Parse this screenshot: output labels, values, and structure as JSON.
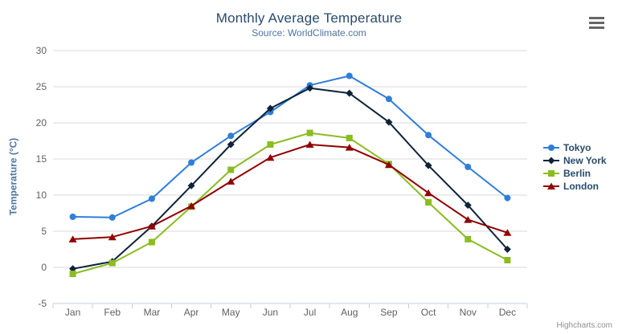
{
  "header": {
    "title": "Monthly Average Temperature",
    "subtitle": "Source: WorldClimate.com"
  },
  "credits_label": "Highcharts.com",
  "colors": {
    "title": "#274b6d",
    "subtitle": "#4d759e",
    "axis_labels": "#606060",
    "axis_line": "#c0d0e0",
    "gridline": "#d8d8d8",
    "menu_icon": "#666666",
    "credits": "#909090"
  },
  "chart_data": {
    "type": "line",
    "title": "Monthly Average Temperature",
    "subtitle": "Source: WorldClimate.com",
    "xlabel": "",
    "ylabel": "Temperature (°C)",
    "ylim": [
      -5,
      30
    ],
    "ytick_step": 5,
    "grid": true,
    "legend_position": "right",
    "categories": [
      "Jan",
      "Feb",
      "Mar",
      "Apr",
      "May",
      "Jun",
      "Jul",
      "Aug",
      "Sep",
      "Oct",
      "Nov",
      "Dec"
    ],
    "series": [
      {
        "name": "Tokyo",
        "color": "#2f7ed8",
        "marker": "circle",
        "values": [
          7.0,
          6.9,
          9.5,
          14.5,
          18.2,
          21.5,
          25.2,
          26.5,
          23.3,
          18.3,
          13.9,
          9.6
        ]
      },
      {
        "name": "New York",
        "color": "#0d233a",
        "marker": "diamond",
        "values": [
          -0.2,
          0.8,
          5.7,
          11.3,
          17.0,
          22.0,
          24.8,
          24.1,
          20.1,
          14.1,
          8.6,
          2.5
        ]
      },
      {
        "name": "Berlin",
        "color": "#8bbc21",
        "marker": "square",
        "values": [
          -0.9,
          0.6,
          3.5,
          8.4,
          13.5,
          17.0,
          18.6,
          17.9,
          14.3,
          9.0,
          3.9,
          1.0
        ]
      },
      {
        "name": "London",
        "color": "#910000",
        "marker": "triangle",
        "values": [
          3.9,
          4.2,
          5.7,
          8.5,
          11.9,
          15.2,
          17.0,
          16.6,
          14.2,
          10.3,
          6.6,
          4.8
        ]
      }
    ]
  }
}
